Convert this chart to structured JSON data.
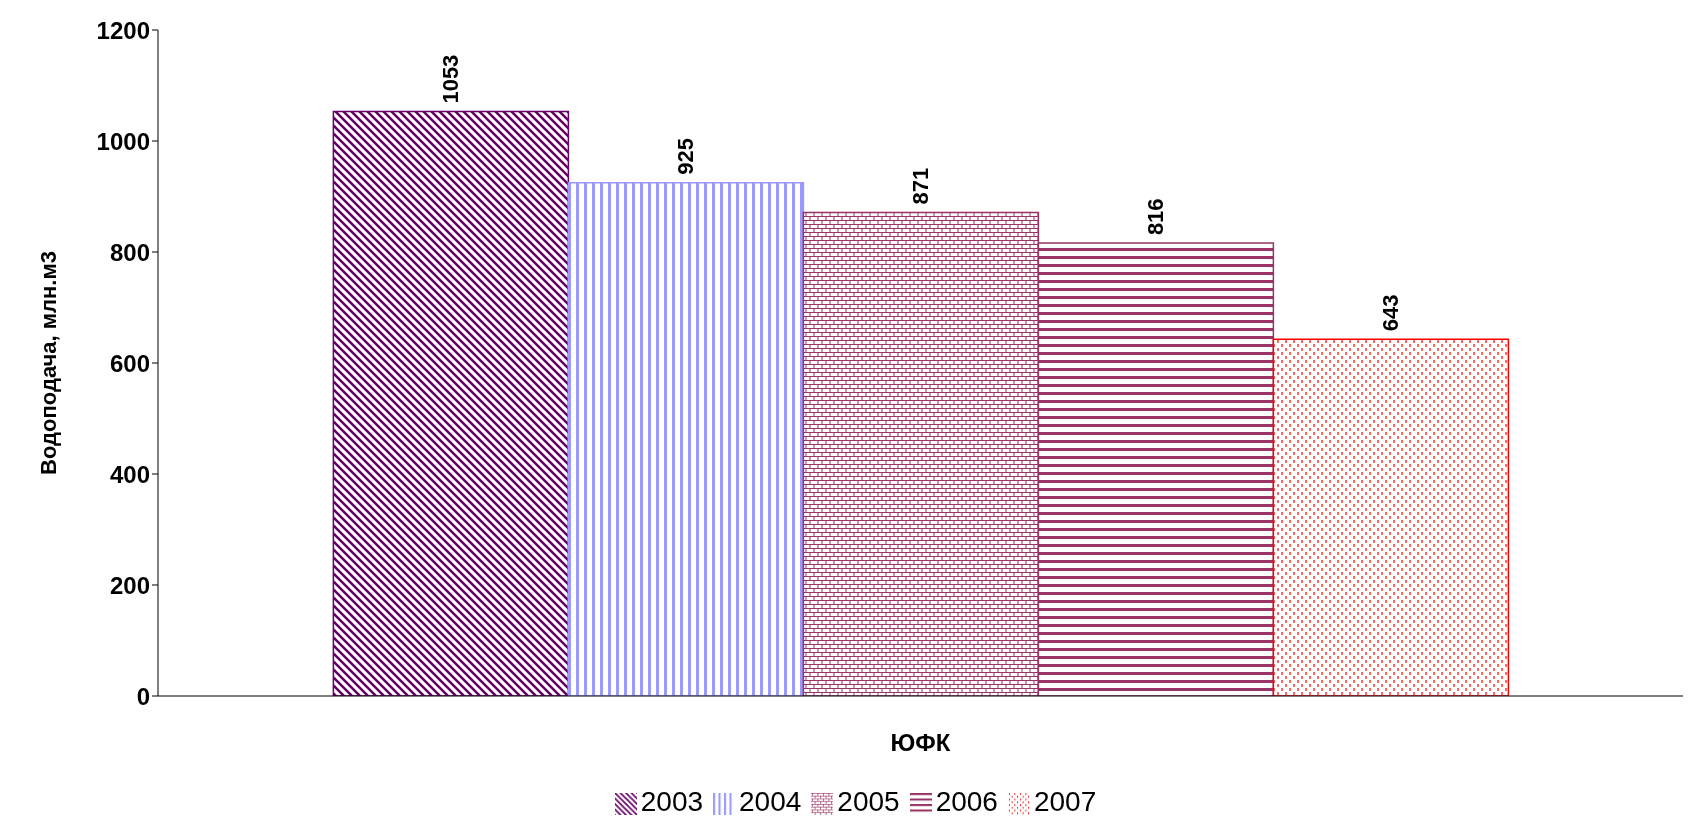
{
  "chart_data": {
    "type": "bar",
    "ylabel": "Водоподача, млн.м3",
    "categories": [
      "ЮФК"
    ],
    "series": [
      {
        "name": "2003",
        "color": "#660066",
        "values": [
          1053
        ]
      },
      {
        "name": "2004",
        "color": "#9999ff",
        "values": [
          925
        ]
      },
      {
        "name": "2005",
        "color": "#993366",
        "values": [
          871
        ]
      },
      {
        "name": "2006",
        "color": "#993366",
        "values": [
          816
        ]
      },
      {
        "name": "2007",
        "color": "#ff0000",
        "values": [
          643
        ]
      }
    ],
    "ylim": [
      0,
      1200
    ],
    "yticks": [
      0,
      200,
      400,
      600,
      800,
      1000,
      1200
    ],
    "grid": false,
    "legend": "bottom",
    "data_labels": true
  }
}
